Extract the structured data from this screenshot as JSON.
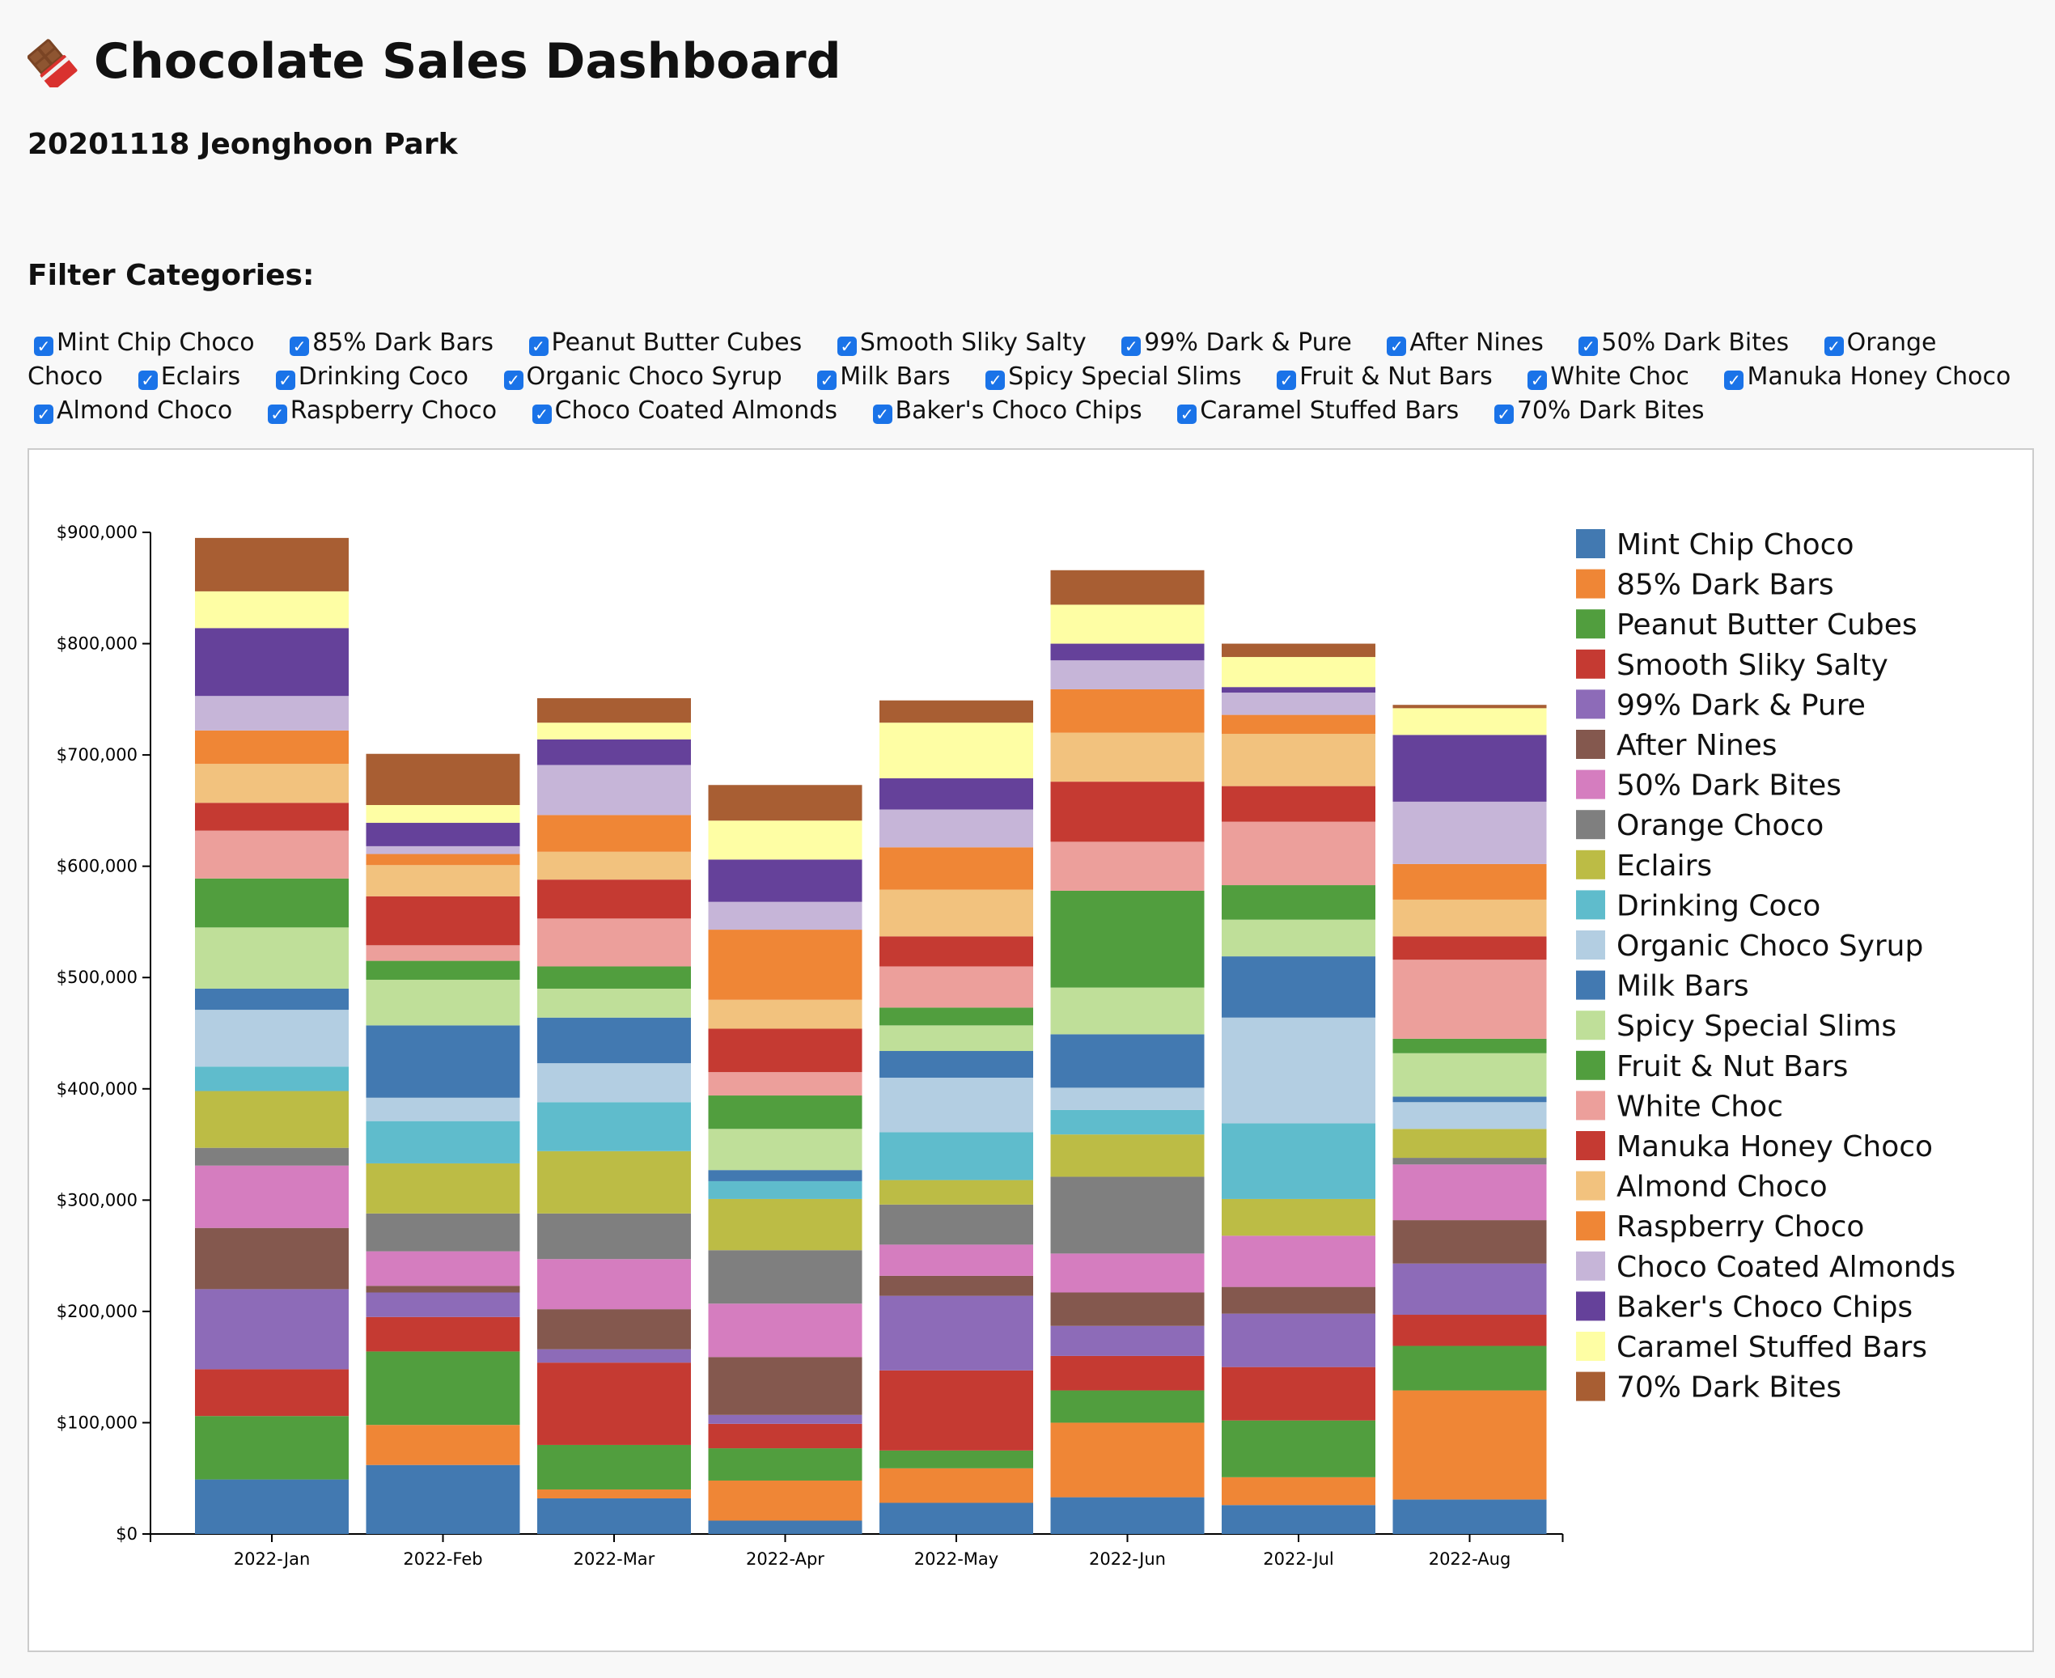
{
  "header": {
    "title": "Chocolate Sales Dashboard",
    "subtitle": "20201118 Jeonghoon Park",
    "title_icon": "chocolate-bar-icon"
  },
  "filters": {
    "heading": "Filter Categories:",
    "items": [
      {
        "label": "Mint Chip Choco",
        "checked": true
      },
      {
        "label": "85% Dark Bars",
        "checked": true
      },
      {
        "label": "Peanut Butter Cubes",
        "checked": true
      },
      {
        "label": "Smooth Sliky Salty",
        "checked": true
      },
      {
        "label": "99% Dark & Pure",
        "checked": true
      },
      {
        "label": "After Nines",
        "checked": true
      },
      {
        "label": "50% Dark Bites",
        "checked": true
      },
      {
        "label": "Orange Choco",
        "checked": true
      },
      {
        "label": "Eclairs",
        "checked": true
      },
      {
        "label": "Drinking Coco",
        "checked": true
      },
      {
        "label": "Organic Choco Syrup",
        "checked": true
      },
      {
        "label": "Milk Bars",
        "checked": true
      },
      {
        "label": "Spicy Special Slims",
        "checked": true
      },
      {
        "label": "Fruit & Nut Bars",
        "checked": true
      },
      {
        "label": "White Choc",
        "checked": true
      },
      {
        "label": "Manuka Honey Choco",
        "checked": true
      },
      {
        "label": "Almond Choco",
        "checked": true
      },
      {
        "label": "Raspberry Choco",
        "checked": true
      },
      {
        "label": "Choco Coated Almonds",
        "checked": true
      },
      {
        "label": "Baker's Choco Chips",
        "checked": true
      },
      {
        "label": "Caramel Stuffed Bars",
        "checked": true
      },
      {
        "label": "70% Dark Bites",
        "checked": true
      }
    ]
  },
  "chart_data": {
    "type": "bar",
    "stacked": true,
    "title": "",
    "xlabel": "",
    "ylabel": "",
    "categories": [
      "2022-Jan",
      "2022-Feb",
      "2022-Mar",
      "2022-Apr",
      "2022-May",
      "2022-Jun",
      "2022-Jul",
      "2022-Aug"
    ],
    "ylim": [
      0,
      900000
    ],
    "yticks": [
      0,
      100000,
      200000,
      300000,
      400000,
      500000,
      600000,
      700000,
      800000,
      900000
    ],
    "ytick_labels": [
      "$0",
      "$100,000",
      "$200,000",
      "$300,000",
      "$400,000",
      "$500,000",
      "$600,000",
      "$700,000",
      "$800,000",
      "$900,000"
    ],
    "legend_position": "right",
    "series": [
      {
        "name": "Mint Chip Choco",
        "color": "#4279b1",
        "values": [
          49000,
          62000,
          32000,
          12000,
          28000,
          33000,
          26000,
          31000
        ]
      },
      {
        "name": "85% Dark Bars",
        "color": "#ef8636",
        "values": [
          0,
          36000,
          8000,
          36000,
          31000,
          67000,
          25000,
          98000
        ]
      },
      {
        "name": "Peanut Butter Cubes",
        "color": "#519e3e",
        "values": [
          57000,
          66000,
          40000,
          29000,
          16000,
          29000,
          51000,
          40000
        ]
      },
      {
        "name": "Smooth Sliky Salty",
        "color": "#c53a32",
        "values": [
          42000,
          31000,
          74000,
          22000,
          72000,
          31000,
          48000,
          28000
        ]
      },
      {
        "name": "99% Dark & Pure",
        "color": "#8d6bb8",
        "values": [
          72000,
          22000,
          12000,
          8000,
          67000,
          27000,
          48000,
          46000
        ]
      },
      {
        "name": "After Nines",
        "color": "#84584e",
        "values": [
          55000,
          6000,
          36000,
          52000,
          18000,
          30000,
          24000,
          39000
        ]
      },
      {
        "name": "50% Dark Bites",
        "color": "#d57dbf",
        "values": [
          56000,
          31000,
          45000,
          48000,
          28000,
          35000,
          46000,
          50000
        ]
      },
      {
        "name": "Orange Choco",
        "color": "#7f7f7f",
        "values": [
          16000,
          34000,
          41000,
          48000,
          36000,
          69000,
          0,
          6000
        ]
      },
      {
        "name": "Eclairs",
        "color": "#bcbc45",
        "values": [
          51000,
          45000,
          56000,
          46000,
          22000,
          38000,
          33000,
          26000
        ]
      },
      {
        "name": "Drinking Coco",
        "color": "#5fbccc",
        "values": [
          22000,
          38000,
          44000,
          16000,
          43000,
          22000,
          68000,
          0
        ]
      },
      {
        "name": "Organic Choco Syrup",
        "color": "#b3cee2",
        "values": [
          51000,
          21000,
          35000,
          0,
          49000,
          20000,
          95000,
          24000
        ]
      },
      {
        "name": "Milk Bars",
        "color": "#4279b1",
        "values": [
          19000,
          65000,
          41000,
          10000,
          24000,
          48000,
          55000,
          5000
        ]
      },
      {
        "name": "Spicy Special Slims",
        "color": "#bfdf99",
        "values": [
          55000,
          41000,
          26000,
          37000,
          23000,
          42000,
          33000,
          39000
        ]
      },
      {
        "name": "Fruit & Nut Bars",
        "color": "#519e3e",
        "values": [
          44000,
          17000,
          20000,
          30000,
          16000,
          87000,
          31000,
          13000
        ]
      },
      {
        "name": "White Choc",
        "color": "#ec9f9b",
        "values": [
          43000,
          14000,
          43000,
          21000,
          37000,
          44000,
          57000,
          71000
        ]
      },
      {
        "name": "Manuka Honey Choco",
        "color": "#c53a32",
        "values": [
          25000,
          44000,
          35000,
          39000,
          27000,
          54000,
          32000,
          21000
        ]
      },
      {
        "name": "Almond Choco",
        "color": "#f2c27e",
        "values": [
          35000,
          28000,
          25000,
          26000,
          42000,
          44000,
          47000,
          33000
        ]
      },
      {
        "name": "Raspberry Choco",
        "color": "#ef8636",
        "values": [
          30000,
          10000,
          33000,
          63000,
          38000,
          39000,
          17000,
          32000
        ]
      },
      {
        "name": "Choco Coated Almonds",
        "color": "#c6b5d8",
        "values": [
          31000,
          7000,
          45000,
          25000,
          34000,
          26000,
          20000,
          56000
        ]
      },
      {
        "name": "Baker's Choco Chips",
        "color": "#65419a",
        "values": [
          61000,
          21000,
          23000,
          38000,
          28000,
          15000,
          5000,
          60000
        ]
      },
      {
        "name": "Caramel Stuffed Bars",
        "color": "#fefea4",
        "values": [
          33000,
          16000,
          15000,
          35000,
          50000,
          35000,
          27000,
          24000
        ]
      },
      {
        "name": "70% Dark Bites",
        "color": "#a85e33",
        "values": [
          48000,
          46000,
          22000,
          32000,
          20000,
          31000,
          12000,
          3000
        ]
      }
    ]
  }
}
